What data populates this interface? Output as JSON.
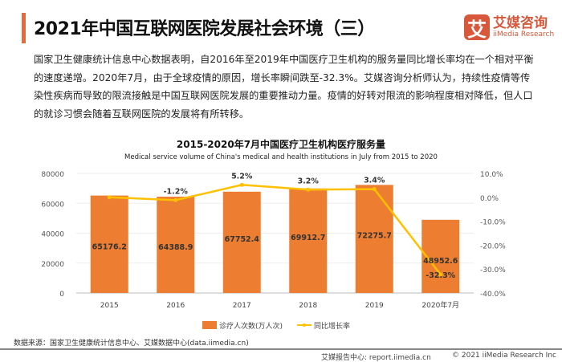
{
  "header": {
    "title": "2021年中国互联网医院发展社会环境（三）",
    "logo_cn": "艾媒咨询",
    "logo_en": "iiMedia Research",
    "logo_mark": "艾"
  },
  "paragraph": "国家卫生健康统计信息中心数据表明，自2016年至2019年中国医疗卫生机构的服务量同比增长率均在一个相对平衡的速度递增。2020年7月，由于全球疫情的原因，增长率瞬间跌至-32.3%。艾媒咨询分析师认为，持续性疫情等传染性疾病而导致的限流接触是中国互联网医院发展的重要推动力量。疫情的好转对限流的影响程度相对降低，但人口的就诊习惯会随着互联网医院的发展将有所转移。",
  "chart_data": {
    "type": "bar+line",
    "title": "2015-2020年7月中国医疗卫生机构医疗服务量",
    "subtitle": "Medical service volume of China's medical and health institutions in July from 2015 to 2020",
    "categories": [
      "2015",
      "2016",
      "2017",
      "2018",
      "2019",
      "2020年7月"
    ],
    "series": [
      {
        "name": "诊疗人次数(万人次)",
        "type": "bar",
        "axis": "left",
        "color": "#ed7d31",
        "values": [
          65176.2,
          64388.9,
          67752.4,
          69912.7,
          72275.7,
          48952.6
        ],
        "labels": [
          "65176.2",
          "64388.9",
          "67752.4",
          "69912.7",
          "72275.7",
          "48952.6"
        ]
      },
      {
        "name": "同比增长率",
        "type": "line",
        "axis": "right",
        "color": "#ffc000",
        "values": [
          0.0,
          -1.2,
          5.2,
          3.2,
          3.4,
          -32.3
        ],
        "labels": [
          "",
          "-1.2%",
          "5.2%",
          "3.2%",
          "3.4%",
          "-32.3%"
        ]
      }
    ],
    "ylim": [
      0,
      80000
    ],
    "yticks": [
      "0",
      "20000",
      "40000",
      "60000",
      "80000"
    ],
    "y2lim": [
      -40,
      10
    ],
    "y2ticks": [
      "-40.0%",
      "-30.0%",
      "-20.0%",
      "-10.0%",
      "0.0%",
      "10.0%"
    ],
    "legend": "bottom",
    "grid": true
  },
  "source": "数据来源：国家卫生健康统计信息中心、艾媒数据中心(data.iimedia.cn)",
  "footer": {
    "report": "艾媒报告中心: report.iimedia.cn",
    "copyright": "© 2021  iiMedia Research Inc"
  }
}
